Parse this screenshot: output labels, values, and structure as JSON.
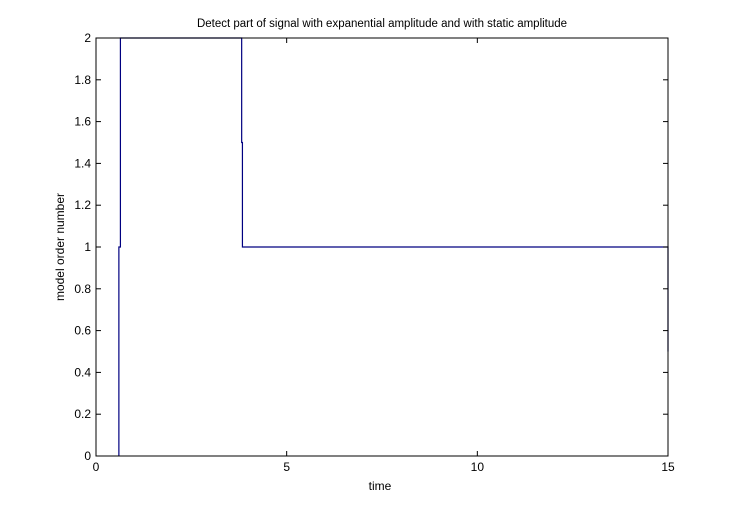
{
  "chart_data": {
    "type": "line",
    "title": "Detect part of signal with expanential amplitude and with static amplitude",
    "xlabel": "time",
    "ylabel": "model order number",
    "xlim": [
      0,
      15
    ],
    "ylim": [
      0,
      2
    ],
    "x_ticks": [
      0,
      5,
      10,
      15
    ],
    "y_ticks": [
      0,
      0.2,
      0.4,
      0.6,
      0.8,
      1,
      1.2,
      1.4,
      1.6,
      1.8,
      2
    ],
    "x_tick_labels": [
      "0",
      "5",
      "10",
      "15"
    ],
    "y_tick_labels": [
      "0",
      "0.2",
      "0.4",
      "0.6",
      "0.8",
      "1",
      "1.2",
      "1.4",
      "1.6",
      "1.8",
      "2"
    ],
    "grid": false,
    "legend": "none",
    "series": [
      {
        "color": "#000080",
        "x": [
          0.6,
          0.6,
          0.64,
          0.64,
          3.82,
          3.82,
          3.84,
          3.84,
          15.0,
          15.0
        ],
        "y": [
          0,
          1,
          1,
          2,
          2,
          1.5,
          1.5,
          1,
          1,
          0.5
        ]
      }
    ]
  }
}
